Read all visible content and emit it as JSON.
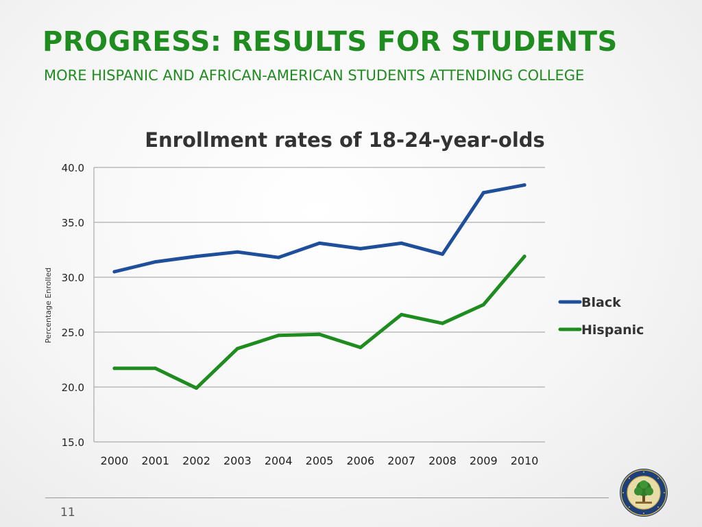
{
  "slide": {
    "title": "PROGRESS: RESULTS FOR STUDENTS",
    "subtitle": "MORE HISPANIC AND AFRICAN-AMERICAN STUDENTS ATTENDING COLLEGE",
    "page_number": "11",
    "title_color": "#1e8c1e"
  },
  "seal": {
    "icon": "department-of-education-seal-icon"
  },
  "chart_data": {
    "type": "line",
    "title": "Enrollment rates of 18-24-year-olds",
    "ylabel": "Percentage Enrolled",
    "xlabel": "",
    "ylim": [
      15,
      40
    ],
    "yticks": [
      "15.0",
      "20.0",
      "25.0",
      "30.0",
      "35.0",
      "40.0"
    ],
    "grid": true,
    "legend_position": "right",
    "categories": [
      "2000",
      "2001",
      "2002",
      "2003",
      "2004",
      "2005",
      "2006",
      "2007",
      "2008",
      "2009",
      "2010"
    ],
    "series": [
      {
        "name": "Black",
        "color": "#1f4e9a",
        "values": [
          30.5,
          31.4,
          31.9,
          32.3,
          31.8,
          33.1,
          32.6,
          33.1,
          32.1,
          37.7,
          38.4
        ]
      },
      {
        "name": "Hispanic",
        "color": "#1e8c1e",
        "values": [
          21.7,
          21.7,
          19.9,
          23.5,
          24.7,
          24.8,
          23.6,
          26.6,
          25.8,
          27.5,
          31.9
        ]
      }
    ]
  }
}
